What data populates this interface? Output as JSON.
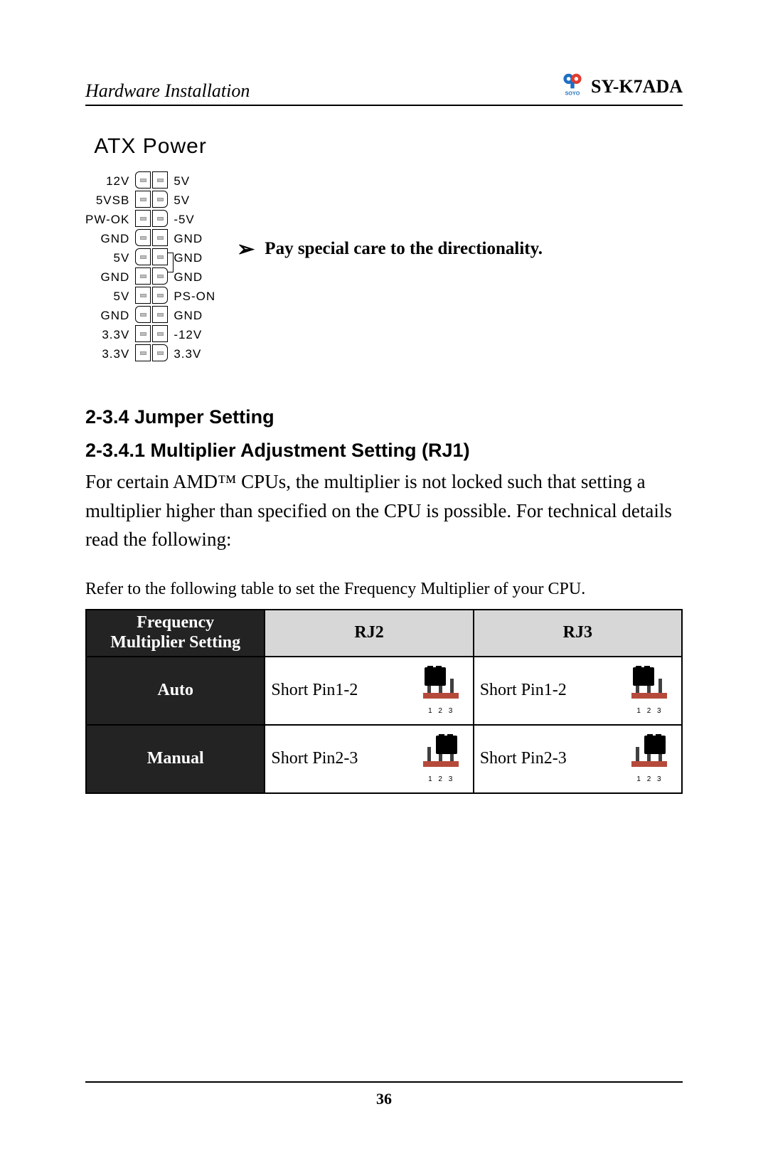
{
  "header": {
    "left": "Hardware Installation",
    "model": "SY-K7ADA",
    "logo_text": "SOYO",
    "logo_colors": {
      "left": "#1e6fc1",
      "right": "#e33b2e",
      "text": "#1e6fc1"
    }
  },
  "atx": {
    "title": "ATX Power",
    "left_labels": [
      "12V",
      "5VSB",
      "PW-OK",
      "GND",
      "5V",
      "GND",
      "5V",
      "GND",
      "3.3V",
      "3.3V"
    ],
    "right_labels": [
      "5V",
      "5V",
      "-5V",
      "GND",
      "GND",
      "GND",
      "PS-ON",
      "GND",
      "-12V",
      "3.3V"
    ],
    "note_symbol": "➢",
    "note": "Pay special care to the directionality.",
    "label_fontsize": 17,
    "title_fontsize": 30,
    "pin_fill": "#bfbfbf",
    "left_rounded_rows": [
      0,
      3,
      4,
      7
    ],
    "right_rounded_rows": [
      1,
      2,
      5,
      6,
      9
    ],
    "key_notch_between_rows": [
      4,
      5
    ]
  },
  "sections": {
    "jumper_heading": "2-3.4 Jumper Setting",
    "multiplier_heading": "2-3.4.1 Multiplier Adjustment Setting (RJ1)",
    "body": "For certain AMD™ CPUs, the multiplier is not locked such that setting a multiplier higher than specified on the CPU is possible. For technical details read the following:",
    "table_caption": "Refer to the following table to set the Frequency Multiplier of your CPU."
  },
  "table": {
    "columns": [
      "Frequency Multiplier Setting",
      "RJ2",
      "RJ3"
    ],
    "col_widths_pct": [
      30,
      35,
      35
    ],
    "header_bg": {
      "dark": "#232323",
      "grey": "#d7d7d7"
    },
    "rows": [
      {
        "setting": "Auto",
        "rj2": {
          "text": "Short Pin1-2",
          "jumper": "1-2"
        },
        "rj3": {
          "text": "Short Pin1-2",
          "jumper": "1-2"
        }
      },
      {
        "setting": "Manual",
        "rj2": {
          "text": "Short Pin2-3",
          "jumper": "2-3"
        },
        "rj3": {
          "text": "Short Pin2-3",
          "jumper": "2-3"
        }
      }
    ],
    "jumper_pin_labels": "1 2 3",
    "jumper_colors": {
      "cap": "#000000",
      "base": "#b54a3a",
      "pin": "#404040"
    }
  },
  "page_number": "36"
}
